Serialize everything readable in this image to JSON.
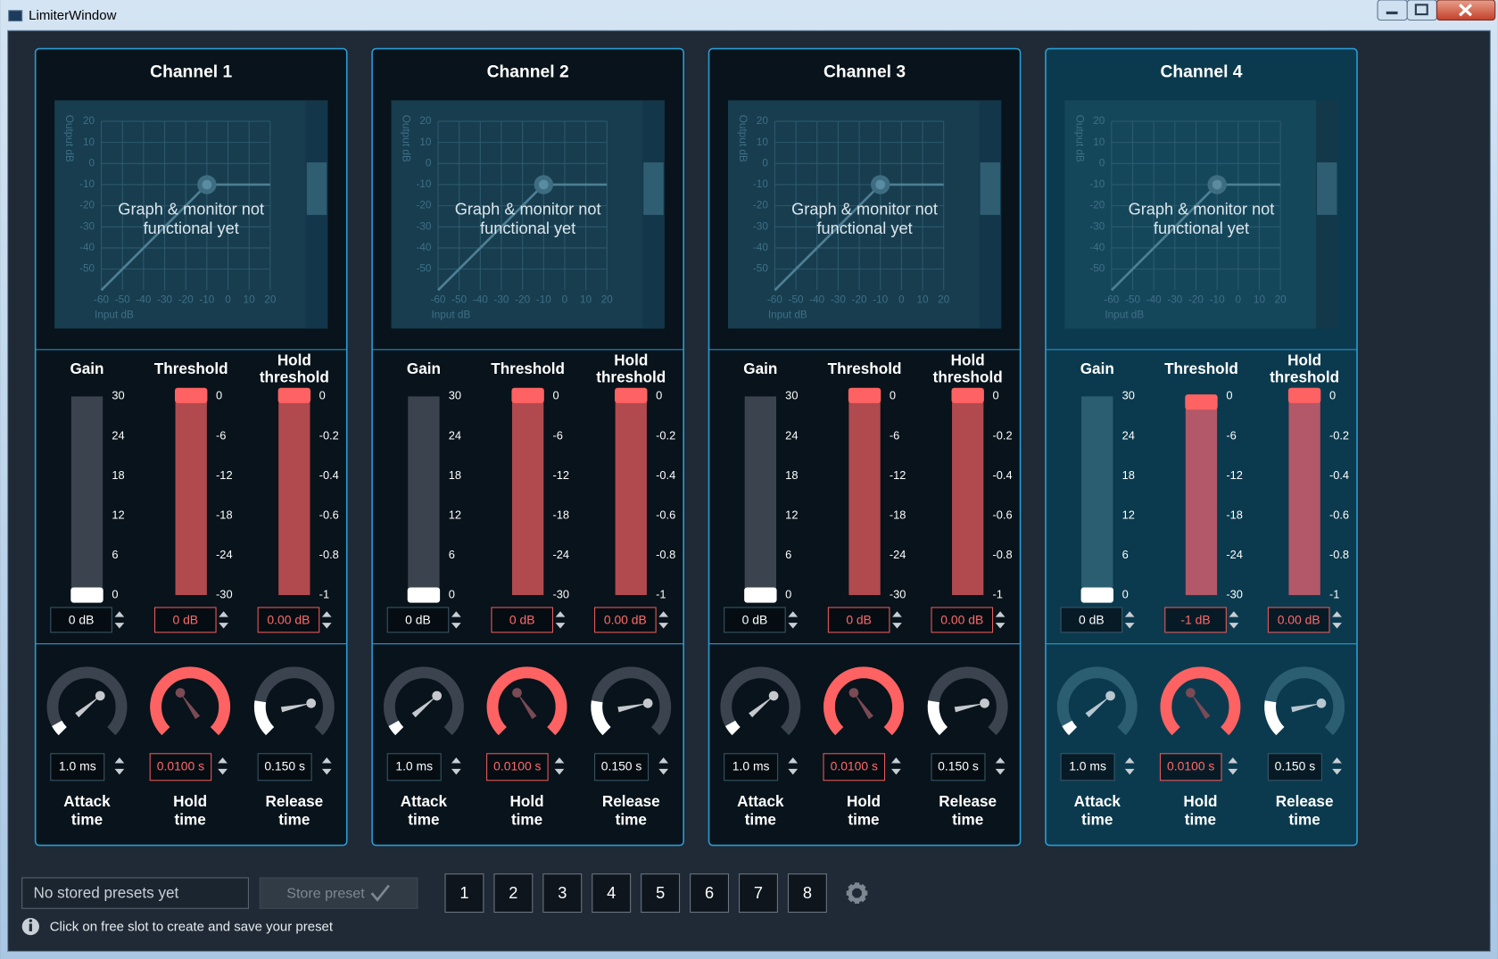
{
  "window": {
    "title": "LimiterWindow"
  },
  "graph": {
    "x_ticks": [
      -60,
      -50,
      -40,
      -30,
      -20,
      -10,
      0,
      10,
      20
    ],
    "y_ticks": [
      20,
      10,
      0,
      -10,
      -20,
      -30,
      -40,
      -50
    ],
    "x_label": "Input dB",
    "y_label": "Output dB",
    "overlay": [
      "Graph & monitor not",
      "functional yet"
    ]
  },
  "sliders": [
    {
      "label": [
        "Gain"
      ],
      "ticks": [
        30,
        24,
        18,
        12,
        6,
        0
      ]
    },
    {
      "label": [
        "Threshold"
      ],
      "ticks": [
        0,
        -6,
        -12,
        -18,
        -24,
        -30
      ]
    },
    {
      "label": [
        "Hold",
        "threshold"
      ],
      "ticks": [
        0,
        -0.2,
        -0.4,
        -0.6,
        -0.8,
        -1
      ]
    }
  ],
  "knobs": [
    {
      "label": [
        "Attack",
        "time"
      ]
    },
    {
      "label": [
        "Hold",
        "time"
      ]
    },
    {
      "label": [
        "Release",
        "time"
      ]
    }
  ],
  "channels": [
    {
      "title": "Channel 1",
      "selected": false,
      "sliders": [
        {
          "value": 0,
          "label": "0 dB"
        },
        {
          "value": 0,
          "label": "0 dB"
        },
        {
          "value": 0,
          "label": "0.00 dB"
        }
      ],
      "knobs": [
        "1.0 ms",
        "0.0100 s",
        "0.150 s"
      ]
    },
    {
      "title": "Channel 2",
      "selected": false,
      "sliders": [
        {
          "value": 0,
          "label": "0 dB"
        },
        {
          "value": 0,
          "label": "0 dB"
        },
        {
          "value": 0,
          "label": "0.00 dB"
        }
      ],
      "knobs": [
        "1.0 ms",
        "0.0100 s",
        "0.150 s"
      ]
    },
    {
      "title": "Channel 3",
      "selected": false,
      "sliders": [
        {
          "value": 0,
          "label": "0 dB"
        },
        {
          "value": 0,
          "label": "0 dB"
        },
        {
          "value": 0,
          "label": "0.00 dB"
        }
      ],
      "knobs": [
        "1.0 ms",
        "0.0100 s",
        "0.150 s"
      ]
    },
    {
      "title": "Channel 4",
      "selected": true,
      "sliders": [
        {
          "value": 0,
          "label": "0 dB"
        },
        {
          "value": -1,
          "label": "-1 dB"
        },
        {
          "value": 0,
          "label": "0.00 dB"
        }
      ],
      "knobs": [
        "1.0 ms",
        "0.0100 s",
        "0.150 s"
      ]
    }
  ],
  "footer": {
    "preset_field": "No stored presets yet",
    "store_button": "Store preset",
    "slots": [
      "1",
      "2",
      "3",
      "4",
      "5",
      "6",
      "7",
      "8"
    ],
    "info": "Click on free slot to create and save your preset"
  }
}
